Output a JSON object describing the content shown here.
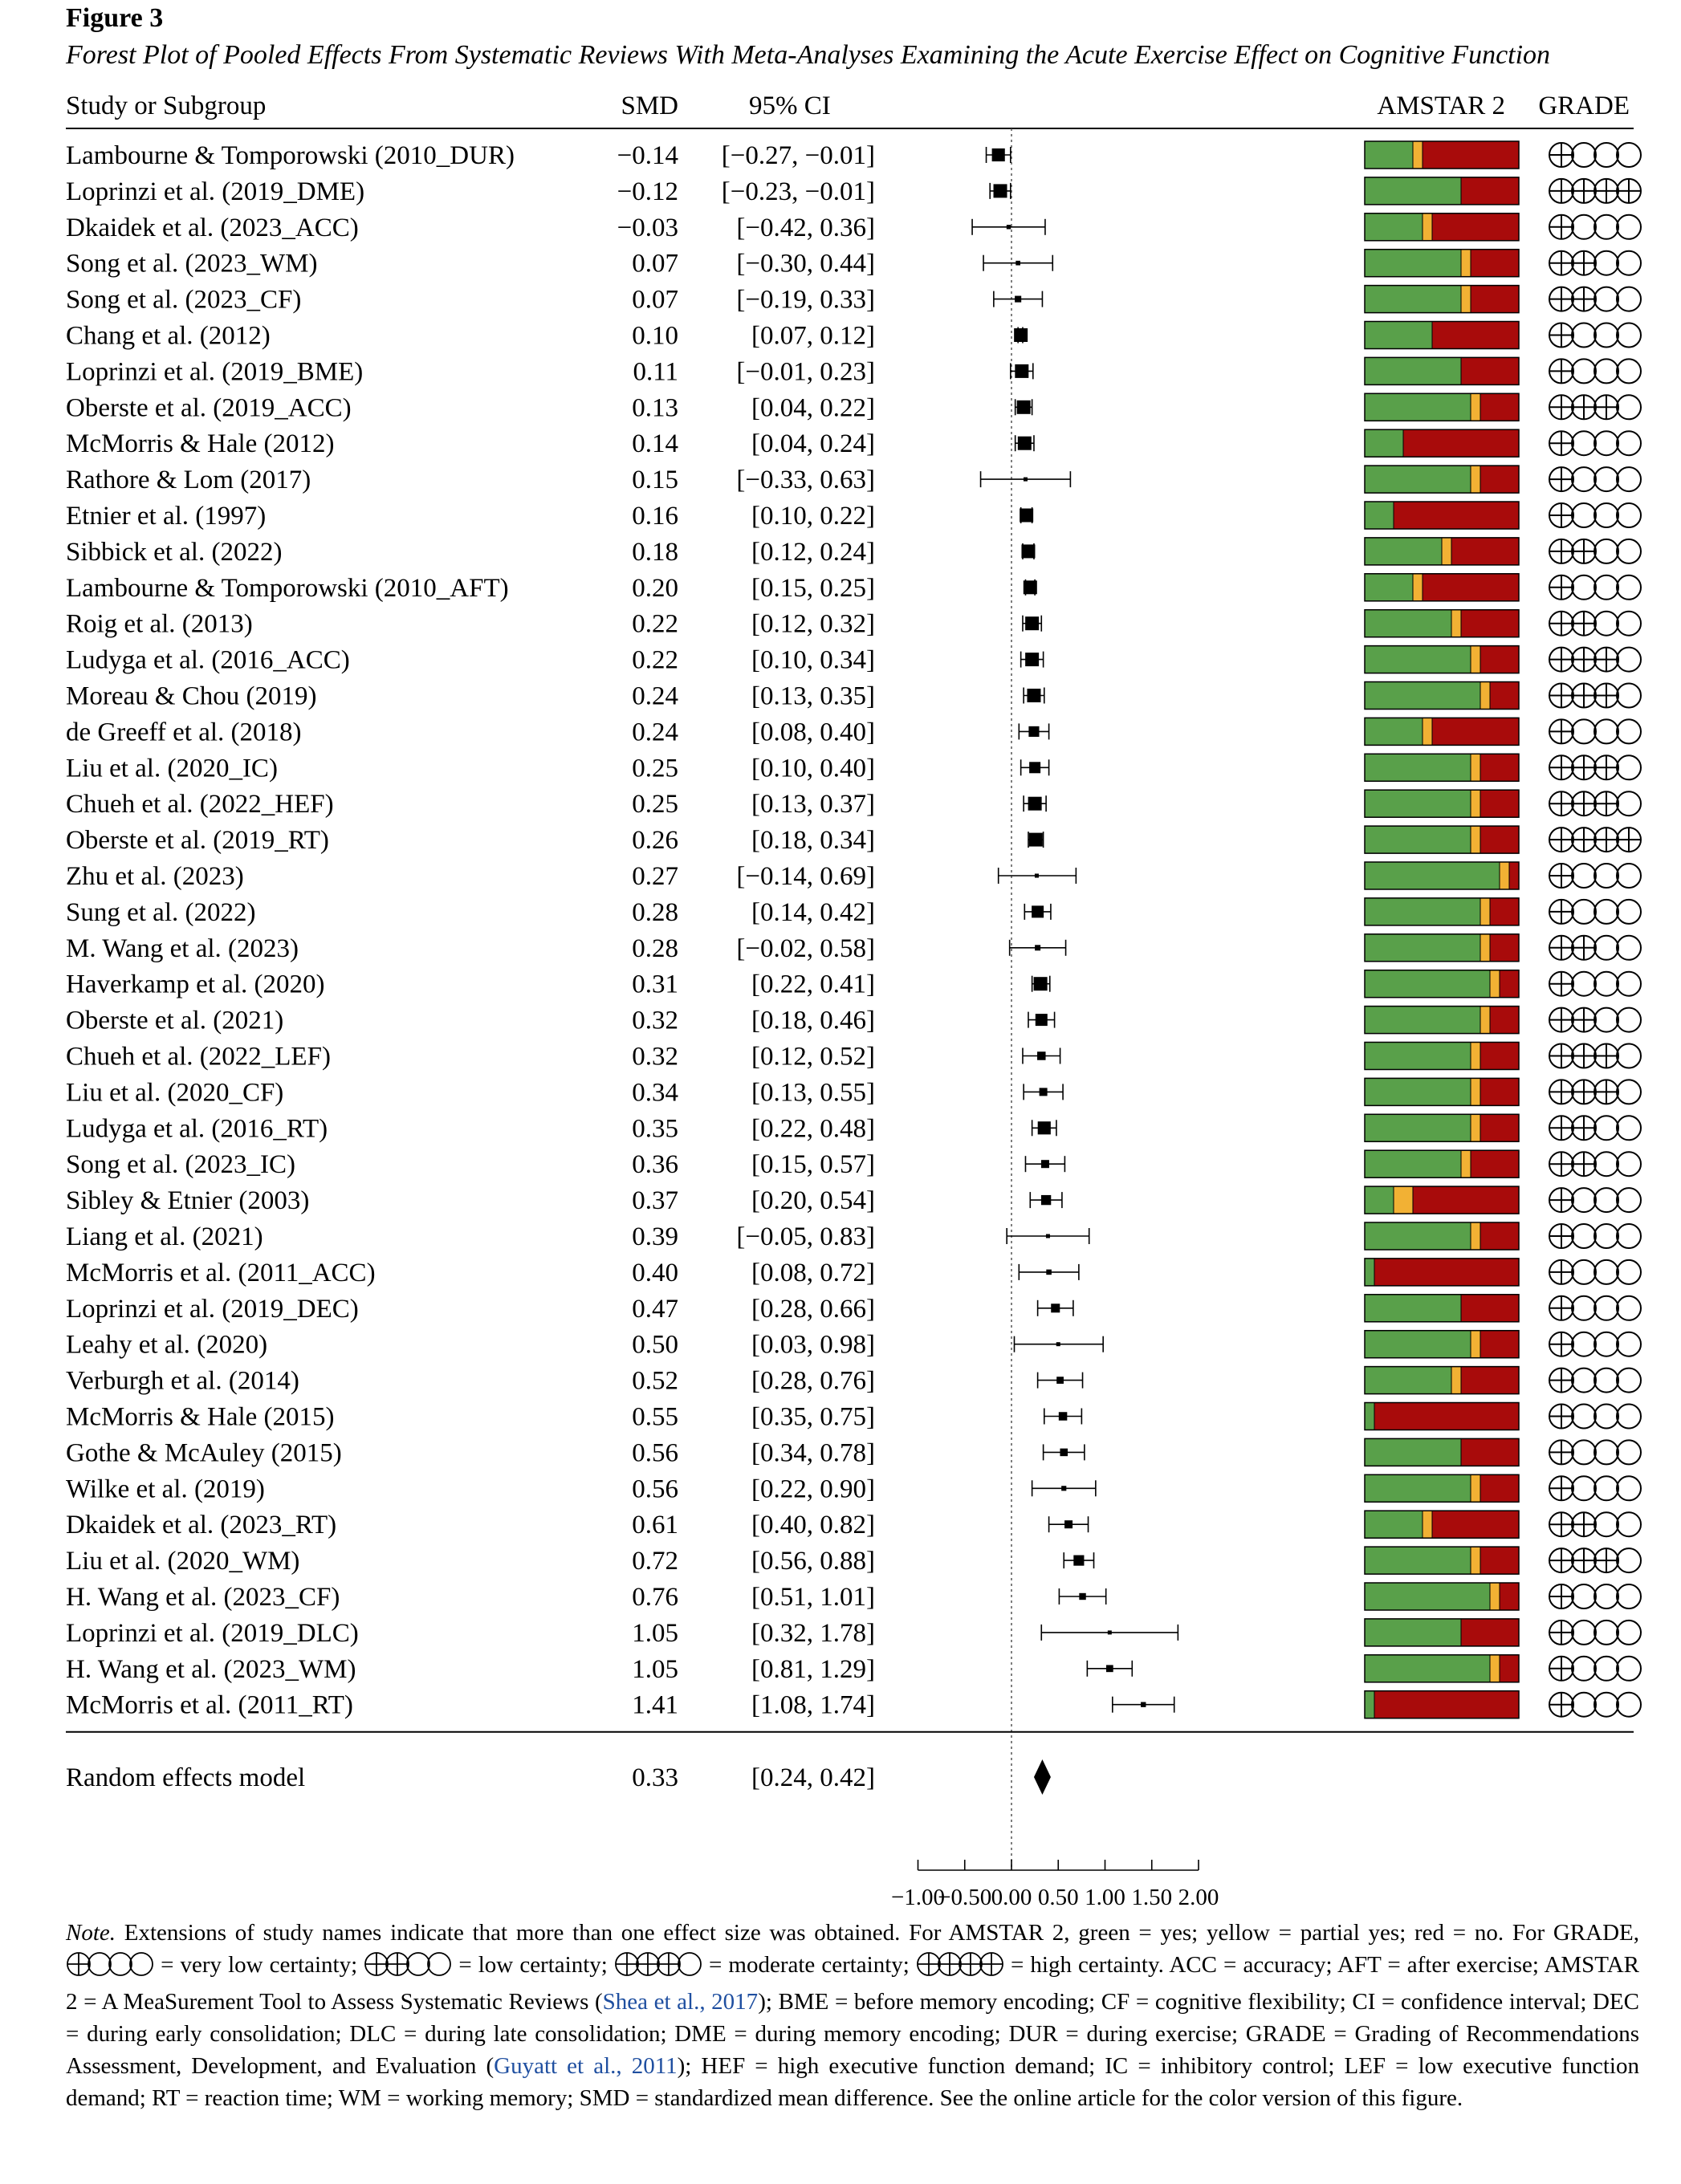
{
  "figure": {
    "label": "Figure 3",
    "title": "Forest Plot of Pooled Effects From Systematic Reviews With Meta-Analyses Examining the Acute Exercise Effect on Cognitive Function"
  },
  "colors": {
    "green": "#59a04a",
    "yellow": "#f2b134",
    "red": "#a80b0b"
  },
  "chart_data": {
    "type": "forest",
    "headers": {
      "study": "Study or Subgroup",
      "smd": "SMD",
      "ci": "95% CI",
      "amstar": "AMSTAR 2",
      "grade": "GRADE"
    },
    "xlim": [
      -1.0,
      2.0
    ],
    "xticks": [
      -1.0,
      -0.5,
      0.0,
      0.5,
      1.0,
      1.5,
      2.0
    ],
    "xtick_labels": [
      "−1.00",
      "−0.50",
      "0.00",
      "0.50",
      "1.00",
      "1.50",
      "2.00"
    ],
    "reference_line": 0.0,
    "amstar_scale_max": 16,
    "grade_levels": {
      "1": "very low certainty",
      "2": "low certainty",
      "3": "moderate certainty",
      "4": "high certainty"
    },
    "studies": [
      {
        "name": "Lambourne & Tomporowski (2010_DUR)",
        "smd": -0.14,
        "lo": -0.27,
        "hi": -0.01,
        "smd_text": "−0.14",
        "ci_text": "[−0.27, −0.01]",
        "amstar": {
          "yes": 5,
          "partial": 1,
          "no": 10
        },
        "grade": 1
      },
      {
        "name": "Loprinzi et al. (2019_DME)",
        "smd": -0.12,
        "lo": -0.23,
        "hi": -0.01,
        "smd_text": "−0.12",
        "ci_text": "[−0.23, −0.01]",
        "amstar": {
          "yes": 10,
          "partial": 0,
          "no": 6
        },
        "grade": 4
      },
      {
        "name": "Dkaidek et al. (2023_ACC)",
        "smd": -0.03,
        "lo": -0.42,
        "hi": 0.36,
        "smd_text": "−0.03",
        "ci_text": "[−0.42, 0.36]",
        "amstar": {
          "yes": 6,
          "partial": 1,
          "no": 9
        },
        "grade": 1
      },
      {
        "name": "Song et al. (2023_WM)",
        "smd": 0.07,
        "lo": -0.3,
        "hi": 0.44,
        "smd_text": "0.07",
        "ci_text": "[−0.30, 0.44]",
        "amstar": {
          "yes": 10,
          "partial": 1,
          "no": 5
        },
        "grade": 2
      },
      {
        "name": "Song et al. (2023_CF)",
        "smd": 0.07,
        "lo": -0.19,
        "hi": 0.33,
        "smd_text": "0.07",
        "ci_text": "[−0.19, 0.33]",
        "amstar": {
          "yes": 10,
          "partial": 1,
          "no": 5
        },
        "grade": 2
      },
      {
        "name": "Chang et al. (2012)",
        "smd": 0.1,
        "lo": 0.07,
        "hi": 0.12,
        "smd_text": "0.10",
        "ci_text": "[0.07, 0.12]",
        "amstar": {
          "yes": 7,
          "partial": 0,
          "no": 9
        },
        "grade": 1
      },
      {
        "name": "Loprinzi et al. (2019_BME)",
        "smd": 0.11,
        "lo": -0.01,
        "hi": 0.23,
        "smd_text": "0.11",
        "ci_text": "[−0.01, 0.23]",
        "amstar": {
          "yes": 10,
          "partial": 0,
          "no": 6
        },
        "grade": 1
      },
      {
        "name": "Oberste et al. (2019_ACC)",
        "smd": 0.13,
        "lo": 0.04,
        "hi": 0.22,
        "smd_text": "0.13",
        "ci_text": "[0.04, 0.22]",
        "amstar": {
          "yes": 11,
          "partial": 1,
          "no": 4
        },
        "grade": 3
      },
      {
        "name": "McMorris & Hale (2012)",
        "smd": 0.14,
        "lo": 0.04,
        "hi": 0.24,
        "smd_text": "0.14",
        "ci_text": "[0.04, 0.24]",
        "amstar": {
          "yes": 4,
          "partial": 0,
          "no": 12
        },
        "grade": 1
      },
      {
        "name": "Rathore & Lom (2017)",
        "smd": 0.15,
        "lo": -0.33,
        "hi": 0.63,
        "smd_text": "0.15",
        "ci_text": "[−0.33, 0.63]",
        "amstar": {
          "yes": 11,
          "partial": 1,
          "no": 4
        },
        "grade": 1
      },
      {
        "name": "Etnier et al. (1997)",
        "smd": 0.16,
        "lo": 0.1,
        "hi": 0.22,
        "smd_text": "0.16",
        "ci_text": "[0.10, 0.22]",
        "amstar": {
          "yes": 3,
          "partial": 0,
          "no": 13
        },
        "grade": 1
      },
      {
        "name": "Sibbick et al. (2022)",
        "smd": 0.18,
        "lo": 0.12,
        "hi": 0.24,
        "smd_text": "0.18",
        "ci_text": "[0.12, 0.24]",
        "amstar": {
          "yes": 8,
          "partial": 1,
          "no": 7
        },
        "grade": 2
      },
      {
        "name": "Lambourne & Tomporowski (2010_AFT)",
        "smd": 0.2,
        "lo": 0.15,
        "hi": 0.25,
        "smd_text": "0.20",
        "ci_text": "[0.15, 0.25]",
        "amstar": {
          "yes": 5,
          "partial": 1,
          "no": 10
        },
        "grade": 1
      },
      {
        "name": "Roig et al. (2013)",
        "smd": 0.22,
        "lo": 0.12,
        "hi": 0.32,
        "smd_text": "0.22",
        "ci_text": "[0.12, 0.32]",
        "amstar": {
          "yes": 9,
          "partial": 1,
          "no": 6
        },
        "grade": 2
      },
      {
        "name": "Ludyga et al. (2016_ACC)",
        "smd": 0.22,
        "lo": 0.1,
        "hi": 0.34,
        "smd_text": "0.22",
        "ci_text": "[0.10, 0.34]",
        "amstar": {
          "yes": 11,
          "partial": 1,
          "no": 4
        },
        "grade": 3
      },
      {
        "name": "Moreau & Chou (2019)",
        "smd": 0.24,
        "lo": 0.13,
        "hi": 0.35,
        "smd_text": "0.24",
        "ci_text": "[0.13, 0.35]",
        "amstar": {
          "yes": 12,
          "partial": 1,
          "no": 3
        },
        "grade": 3
      },
      {
        "name": "de Greeff et al. (2018)",
        "smd": 0.24,
        "lo": 0.08,
        "hi": 0.4,
        "smd_text": "0.24",
        "ci_text": "[0.08, 0.40]",
        "amstar": {
          "yes": 6,
          "partial": 1,
          "no": 9
        },
        "grade": 1
      },
      {
        "name": "Liu et al. (2020_IC)",
        "smd": 0.25,
        "lo": 0.1,
        "hi": 0.4,
        "smd_text": "0.25",
        "ci_text": "[0.10, 0.40]",
        "amstar": {
          "yes": 11,
          "partial": 1,
          "no": 4
        },
        "grade": 3
      },
      {
        "name": "Chueh et al. (2022_HEF)",
        "smd": 0.25,
        "lo": 0.13,
        "hi": 0.37,
        "smd_text": "0.25",
        "ci_text": "[0.13, 0.37]",
        "amstar": {
          "yes": 11,
          "partial": 1,
          "no": 4
        },
        "grade": 3
      },
      {
        "name": "Oberste et al. (2019_RT)",
        "smd": 0.26,
        "lo": 0.18,
        "hi": 0.34,
        "smd_text": "0.26",
        "ci_text": "[0.18, 0.34]",
        "amstar": {
          "yes": 11,
          "partial": 1,
          "no": 4
        },
        "grade": 4
      },
      {
        "name": "Zhu et al. (2023)",
        "smd": 0.27,
        "lo": -0.14,
        "hi": 0.69,
        "smd_text": "0.27",
        "ci_text": "[−0.14, 0.69]",
        "amstar": {
          "yes": 14,
          "partial": 1,
          "no": 1
        },
        "grade": 1
      },
      {
        "name": "Sung et al. (2022)",
        "smd": 0.28,
        "lo": 0.14,
        "hi": 0.42,
        "smd_text": "0.28",
        "ci_text": "[0.14, 0.42]",
        "amstar": {
          "yes": 12,
          "partial": 1,
          "no": 3
        },
        "grade": 1
      },
      {
        "name": "M. Wang et al. (2023)",
        "smd": 0.28,
        "lo": -0.02,
        "hi": 0.58,
        "smd_text": "0.28",
        "ci_text": "[−0.02, 0.58]",
        "amstar": {
          "yes": 12,
          "partial": 1,
          "no": 3
        },
        "grade": 2
      },
      {
        "name": "Haverkamp et al. (2020)",
        "smd": 0.31,
        "lo": 0.22,
        "hi": 0.41,
        "smd_text": "0.31",
        "ci_text": "[0.22, 0.41]",
        "amstar": {
          "yes": 13,
          "partial": 1,
          "no": 2
        },
        "grade": 1
      },
      {
        "name": "Oberste et al. (2021)",
        "smd": 0.32,
        "lo": 0.18,
        "hi": 0.46,
        "smd_text": "0.32",
        "ci_text": "[0.18, 0.46]",
        "amstar": {
          "yes": 12,
          "partial": 1,
          "no": 3
        },
        "grade": 2
      },
      {
        "name": "Chueh et al. (2022_LEF)",
        "smd": 0.32,
        "lo": 0.12,
        "hi": 0.52,
        "smd_text": "0.32",
        "ci_text": "[0.12, 0.52]",
        "amstar": {
          "yes": 11,
          "partial": 1,
          "no": 4
        },
        "grade": 3
      },
      {
        "name": "Liu et al. (2020_CF)",
        "smd": 0.34,
        "lo": 0.13,
        "hi": 0.55,
        "smd_text": "0.34",
        "ci_text": "[0.13, 0.55]",
        "amstar": {
          "yes": 11,
          "partial": 1,
          "no": 4
        },
        "grade": 3
      },
      {
        "name": "Ludyga et al. (2016_RT)",
        "smd": 0.35,
        "lo": 0.22,
        "hi": 0.48,
        "smd_text": "0.35",
        "ci_text": "[0.22, 0.48]",
        "amstar": {
          "yes": 11,
          "partial": 1,
          "no": 4
        },
        "grade": 2
      },
      {
        "name": "Song et al. (2023_IC)",
        "smd": 0.36,
        "lo": 0.15,
        "hi": 0.57,
        "smd_text": "0.36",
        "ci_text": "[0.15, 0.57]",
        "amstar": {
          "yes": 10,
          "partial": 1,
          "no": 5
        },
        "grade": 2
      },
      {
        "name": "Sibley & Etnier (2003)",
        "smd": 0.37,
        "lo": 0.2,
        "hi": 0.54,
        "smd_text": "0.37",
        "ci_text": "[0.20, 0.54]",
        "amstar": {
          "yes": 3,
          "partial": 2,
          "no": 11
        },
        "grade": 1
      },
      {
        "name": "Liang et al. (2021)",
        "smd": 0.39,
        "lo": -0.05,
        "hi": 0.83,
        "smd_text": "0.39",
        "ci_text": "[−0.05, 0.83]",
        "amstar": {
          "yes": 11,
          "partial": 1,
          "no": 4
        },
        "grade": 1
      },
      {
        "name": "McMorris et al. (2011_ACC)",
        "smd": 0.4,
        "lo": 0.08,
        "hi": 0.72,
        "smd_text": "0.40",
        "ci_text": "[0.08, 0.72]",
        "amstar": {
          "yes": 1,
          "partial": 0,
          "no": 15
        },
        "grade": 1
      },
      {
        "name": "Loprinzi et al. (2019_DEC)",
        "smd": 0.47,
        "lo": 0.28,
        "hi": 0.66,
        "smd_text": "0.47",
        "ci_text": "[0.28, 0.66]",
        "amstar": {
          "yes": 10,
          "partial": 0,
          "no": 6
        },
        "grade": 1
      },
      {
        "name": "Leahy et al. (2020)",
        "smd": 0.5,
        "lo": 0.03,
        "hi": 0.98,
        "smd_text": "0.50",
        "ci_text": "[0.03, 0.98]",
        "amstar": {
          "yes": 11,
          "partial": 1,
          "no": 4
        },
        "grade": 1
      },
      {
        "name": "Verburgh et al. (2014)",
        "smd": 0.52,
        "lo": 0.28,
        "hi": 0.76,
        "smd_text": "0.52",
        "ci_text": "[0.28, 0.76]",
        "amstar": {
          "yes": 9,
          "partial": 1,
          "no": 6
        },
        "grade": 1
      },
      {
        "name": "McMorris & Hale (2015)",
        "smd": 0.55,
        "lo": 0.35,
        "hi": 0.75,
        "smd_text": "0.55",
        "ci_text": "[0.35, 0.75]",
        "amstar": {
          "yes": 1,
          "partial": 0,
          "no": 15
        },
        "grade": 1
      },
      {
        "name": "Gothe & McAuley (2015)",
        "smd": 0.56,
        "lo": 0.34,
        "hi": 0.78,
        "smd_text": "0.56",
        "ci_text": "[0.34, 0.78]",
        "amstar": {
          "yes": 10,
          "partial": 0,
          "no": 6
        },
        "grade": 1
      },
      {
        "name": "Wilke et al. (2019)",
        "smd": 0.56,
        "lo": 0.22,
        "hi": 0.9,
        "smd_text": "0.56",
        "ci_text": "[0.22, 0.90]",
        "amstar": {
          "yes": 11,
          "partial": 1,
          "no": 4
        },
        "grade": 1
      },
      {
        "name": "Dkaidek et al. (2023_RT)",
        "smd": 0.61,
        "lo": 0.4,
        "hi": 0.82,
        "smd_text": "0.61",
        "ci_text": "[0.40, 0.82]",
        "amstar": {
          "yes": 6,
          "partial": 1,
          "no": 9
        },
        "grade": 2
      },
      {
        "name": "Liu et al. (2020_WM)",
        "smd": 0.72,
        "lo": 0.56,
        "hi": 0.88,
        "smd_text": "0.72",
        "ci_text": "[0.56, 0.88]",
        "amstar": {
          "yes": 11,
          "partial": 1,
          "no": 4
        },
        "grade": 3
      },
      {
        "name": "H. Wang et al. (2023_CF)",
        "smd": 0.76,
        "lo": 0.51,
        "hi": 1.01,
        "smd_text": "0.76",
        "ci_text": "[0.51, 1.01]",
        "amstar": {
          "yes": 13,
          "partial": 1,
          "no": 2
        },
        "grade": 1
      },
      {
        "name": "Loprinzi et al. (2019_DLC)",
        "smd": 1.05,
        "lo": 0.32,
        "hi": 1.78,
        "smd_text": "1.05",
        "ci_text": "[0.32, 1.78]",
        "amstar": {
          "yes": 10,
          "partial": 0,
          "no": 6
        },
        "grade": 1
      },
      {
        "name": "H. Wang et al. (2023_WM)",
        "smd": 1.05,
        "lo": 0.81,
        "hi": 1.29,
        "smd_text": "1.05",
        "ci_text": "[0.81, 1.29]",
        "amstar": {
          "yes": 13,
          "partial": 1,
          "no": 2
        },
        "grade": 1
      },
      {
        "name": "McMorris et al. (2011_RT)",
        "smd": 1.41,
        "lo": 1.08,
        "hi": 1.74,
        "smd_text": "1.41",
        "ci_text": "[1.08, 1.74]",
        "amstar": {
          "yes": 1,
          "partial": 0,
          "no": 15
        },
        "grade": 1
      }
    ],
    "pooled": {
      "name": "Random effects model",
      "smd": 0.33,
      "lo": 0.24,
      "hi": 0.42,
      "smd_text": "0.33",
      "ci_text": "[0.24, 0.42]"
    }
  },
  "note": {
    "lead": "Note.",
    "p1": " Extensions of study names indicate that more than one effect size was obtained. For AMSTAR 2, green = yes; yellow = partial yes; red = no. For GRADE, ",
    "g1": " = very low certainty; ",
    "g2": " = low certainty; ",
    "g3": " = moderate certainty; ",
    "g4": " = high certainty. ACC = accuracy; AFT = after exercise; AMSTAR 2 = A MeaSurement Tool to Assess Systematic Reviews (",
    "ref1": "Shea et al., 2017",
    "p2": "); BME = before memory encoding; CF = cognitive flexibility; CI = confidence interval; DEC = during early consolidation; DLC = during late consolidation; DME = during memory encoding; DUR = during exercise; GRADE = Grading of Recommendations Assessment, Development, and Evaluation (",
    "ref2": "Guyatt et al., 2011",
    "p3": "); HEF = high executive function demand; IC = inhibitory control; LEF = low executive function demand; RT = reaction time; WM = working memory; SMD = standardized mean difference. See the online article for the color version of this figure."
  }
}
